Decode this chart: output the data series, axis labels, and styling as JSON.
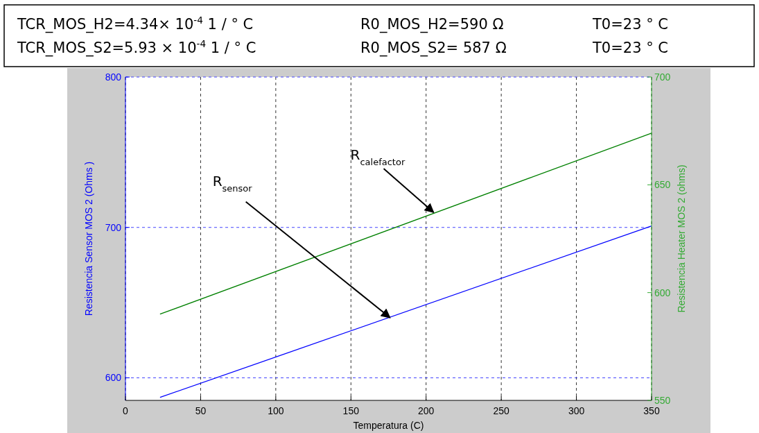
{
  "chart_data": {
    "type": "line",
    "xlabel": "Temperatura (C)",
    "ylabel": "Resistencia Sensor MOS 2  (Ohms )",
    "y2label": "Resistencia Heater MOS 2  (ohms)",
    "xlim": [
      0,
      350
    ],
    "xticks": [
      0,
      50,
      100,
      150,
      200,
      250,
      300,
      350
    ],
    "ylim": [
      585,
      800
    ],
    "yticks": [
      600,
      700,
      800
    ],
    "y2lim": [
      550,
      700
    ],
    "y2ticks": [
      550,
      600,
      650,
      700
    ],
    "grid": true,
    "marker": "none",
    "line_style": "solid",
    "x": [
      23,
      350
    ],
    "series": [
      {
        "color": "#0000ff",
        "values": [
          587,
          701
        ]
      },
      {
        "color": "#008000",
        "values": [
          590,
          674
        ],
        "axis": "y2"
      }
    ],
    "annotations": [
      "TCR_MOS_H2=4.34× 10$^{-4}$ 1 / ° C",
      "R0_MOS_H2=590 Ω",
      "T0=23 ° C",
      "TCR_MOS_S2=5.93 × 10$^{-4}$ 1 / ° C",
      "R0_MOS_S2= 587 Ω",
      "T0=23 ° C",
      {
        "text": "R$_{sensor}$",
        "x": 176,
        "y": 640
      },
      {
        "text": "R$_{calefactor}$",
        "x": 205,
        "y": 710
      }
    ]
  }
}
